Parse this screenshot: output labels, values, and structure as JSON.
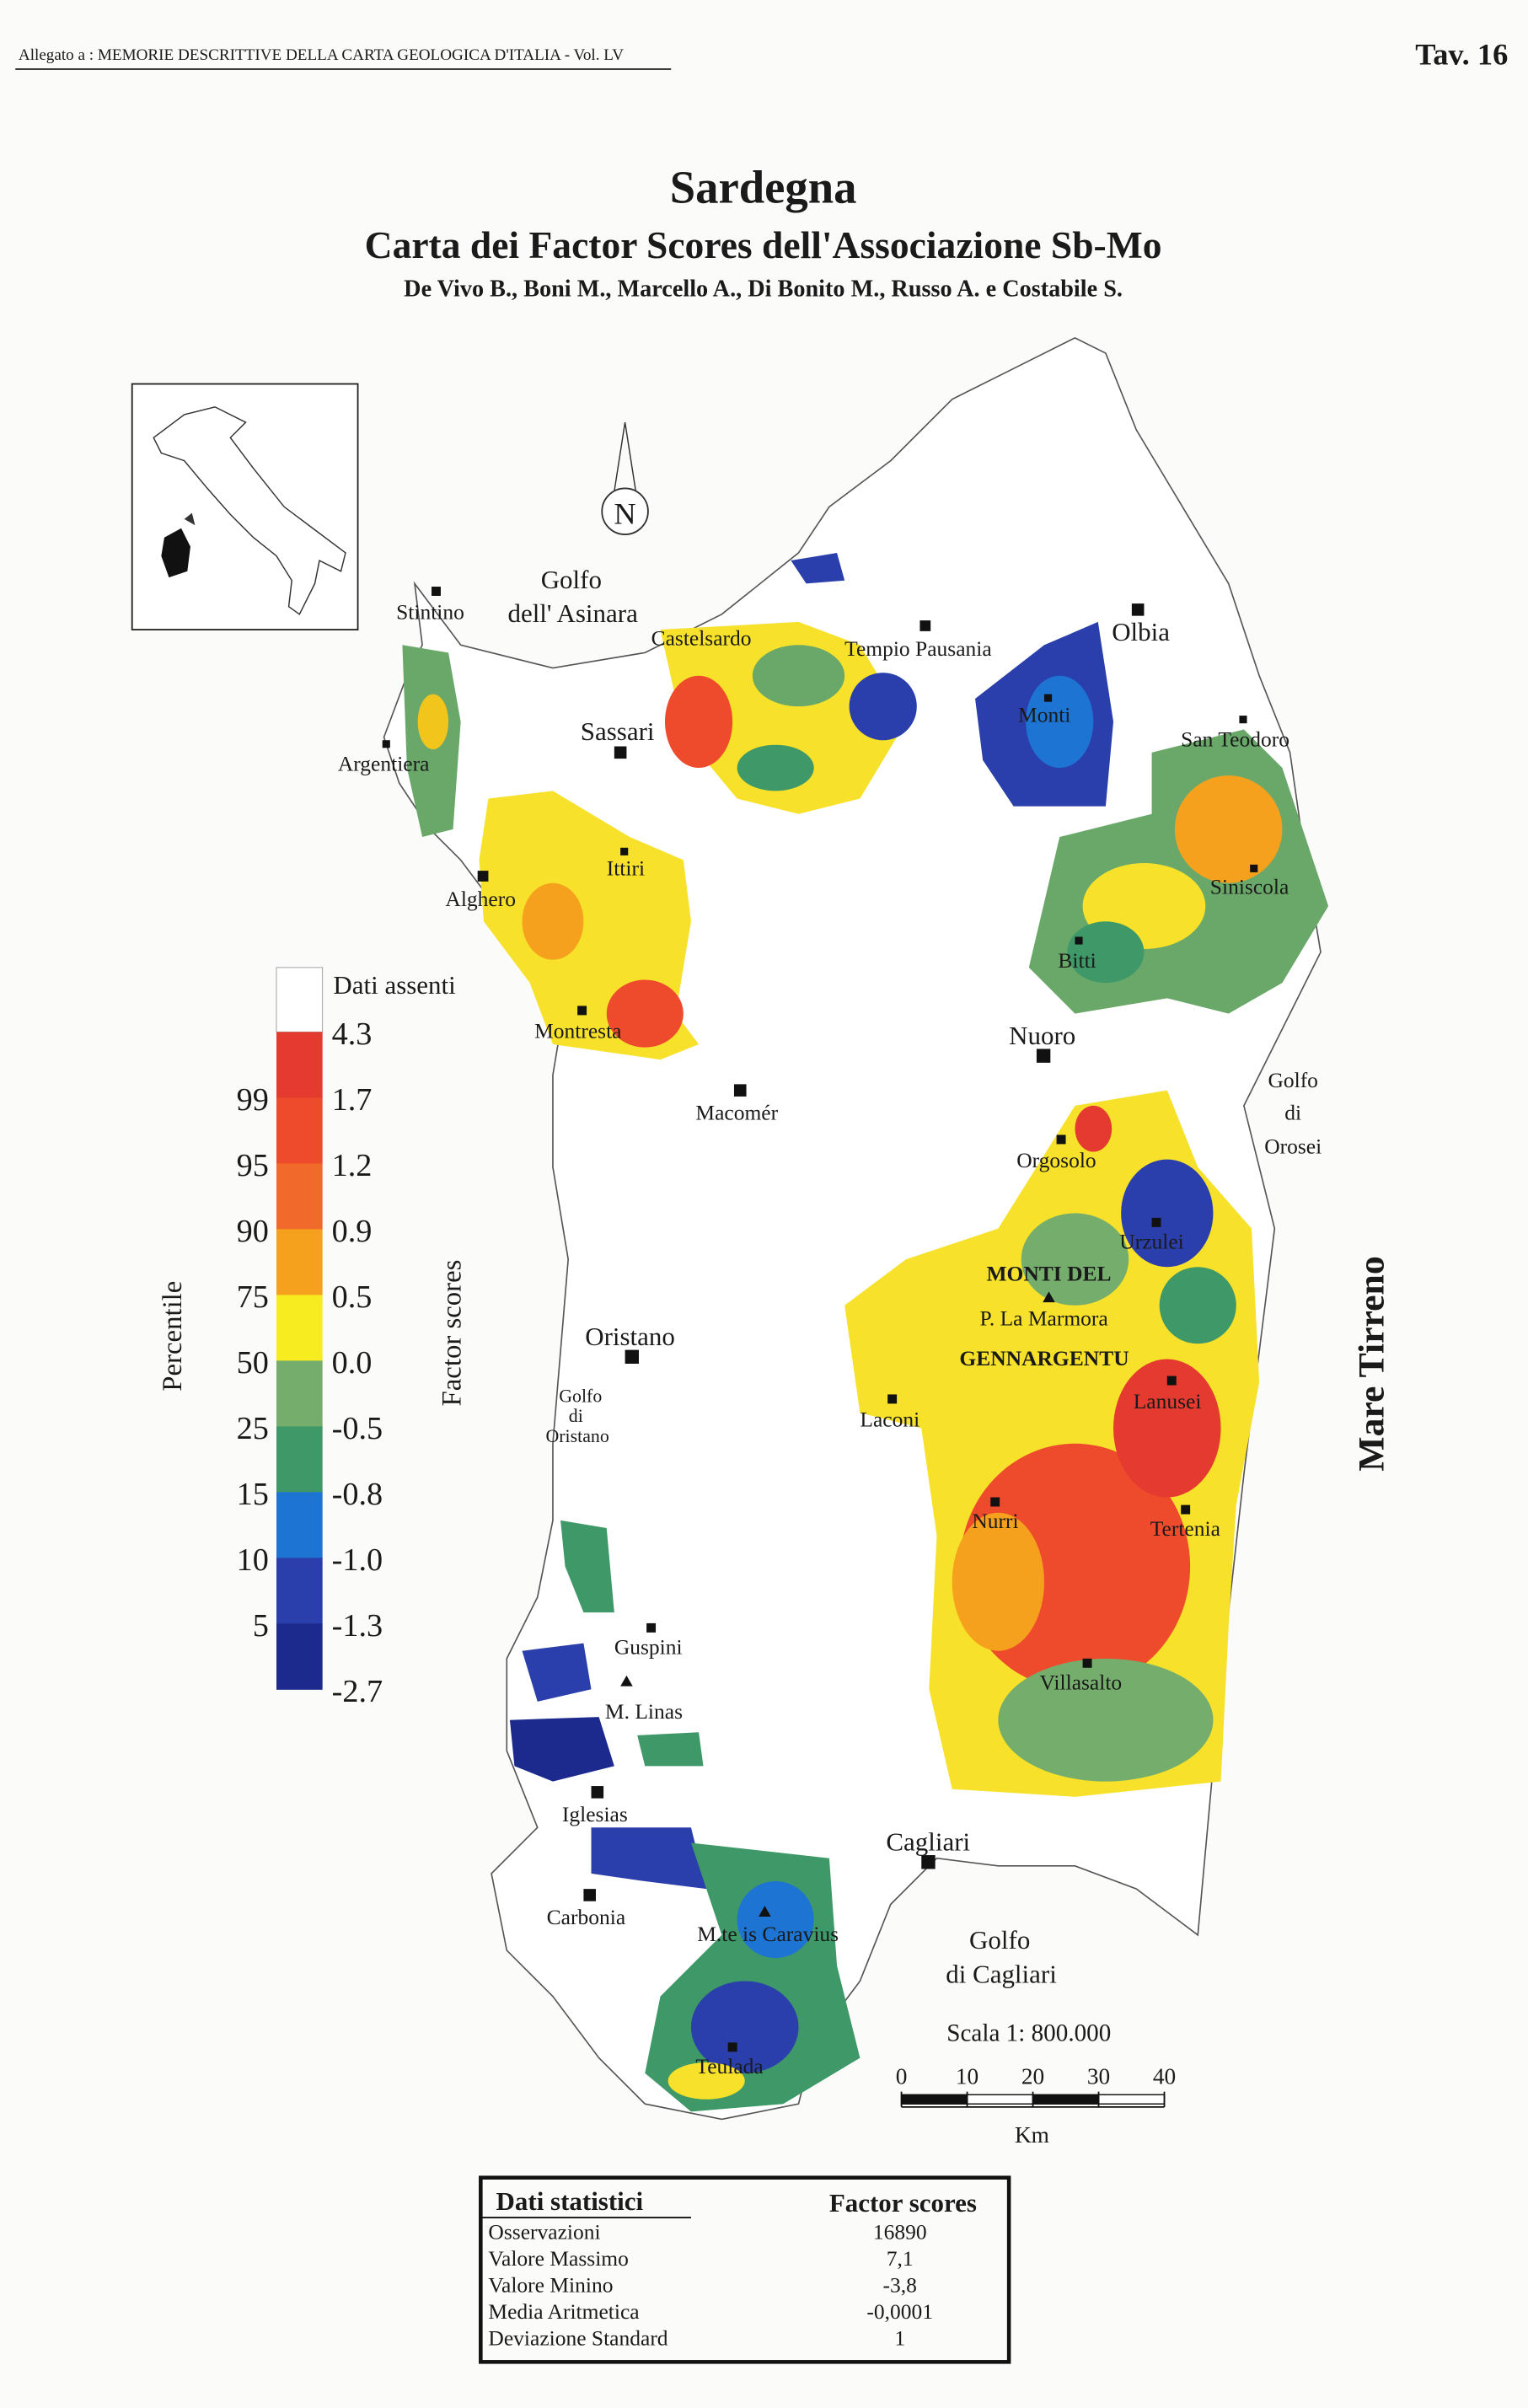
{
  "header": {
    "source": "Allegato a : MEMORIE DESCRITTIVE DELLA CARTA GEOLOGICA D'ITALIA - Vol. LV",
    "plate": "Tav. 16"
  },
  "title": "Sardegna",
  "subtitle": "Carta dei Factor Scores dell'Associazione Sb-Mo",
  "authors": "De Vivo B., Boni M., Marcello A., Di Bonito M., Russo A. e Costabile S.",
  "north": "N",
  "places": [
    "Stintino",
    "Castelsardo",
    "Tempio Pausania",
    "Olbia",
    "Sassari",
    "Monti",
    "San Teodoro",
    "Argentiera",
    "Ittiri",
    "Alghero",
    "Siniscola",
    "Bitti",
    "Montresta",
    "Nuoro",
    "Macomér",
    "Orgosolo",
    "Urzulei",
    "P. La Marmora",
    "Oristano",
    "Laconi",
    "Lanusei",
    "Nurri",
    "Tertenia",
    "Guspini",
    "M. Linas",
    "Villasalto",
    "Iglesias",
    "Cagliari",
    "Carbonia",
    "M.te is Caravius",
    "Teulada"
  ],
  "water": {
    "asinara": [
      "Golfo",
      "dell' Asinara"
    ],
    "orosei": [
      "Golfo",
      "di",
      "Orosei"
    ],
    "oristano": [
      "Golfo",
      "di",
      "Oristano"
    ],
    "cagliari": [
      "Golfo",
      "di  Cagliari"
    ],
    "sea": "Mare  Tirreno"
  },
  "mountains": [
    "MONTI  DEL",
    "GENNARGENTU"
  ],
  "legend": {
    "missing_label": "Dati assenti",
    "scores": [
      "4.3",
      "1.7",
      "1.2",
      "0.9",
      "0.5",
      "0.0",
      "-0.5",
      "-0.8",
      "-1.0",
      "-1.3",
      "-2.7"
    ],
    "percentiles": [
      "99",
      "95",
      "90",
      "75",
      "50",
      "25",
      "15",
      "10",
      "5"
    ],
    "colors": [
      "#e43a2f",
      "#ee4a2c",
      "#f26a2b",
      "#f6a11d",
      "#f7ec1f",
      "#74ad6c",
      "#3e9868",
      "#1d74d3",
      "#2a3fab",
      "#1b2a8c"
    ],
    "percentile_title": "Percentile",
    "score_title": "Factor scores"
  },
  "scale": {
    "label": "Scala 1: 800.000",
    "ticks": [
      "0",
      "10",
      "20",
      "30",
      "40"
    ],
    "unit": "Km"
  },
  "stats": {
    "header": [
      "Dati  statistici",
      "Factor scores"
    ],
    "rows": [
      [
        "Osservazioni",
        "16890"
      ],
      [
        "Valore Massimo",
        "7,1"
      ],
      [
        "Valore Minino",
        "-3,8"
      ],
      [
        "Media Aritmetica",
        "-0,0001"
      ],
      [
        "Deviazione Standard",
        "1"
      ]
    ]
  }
}
